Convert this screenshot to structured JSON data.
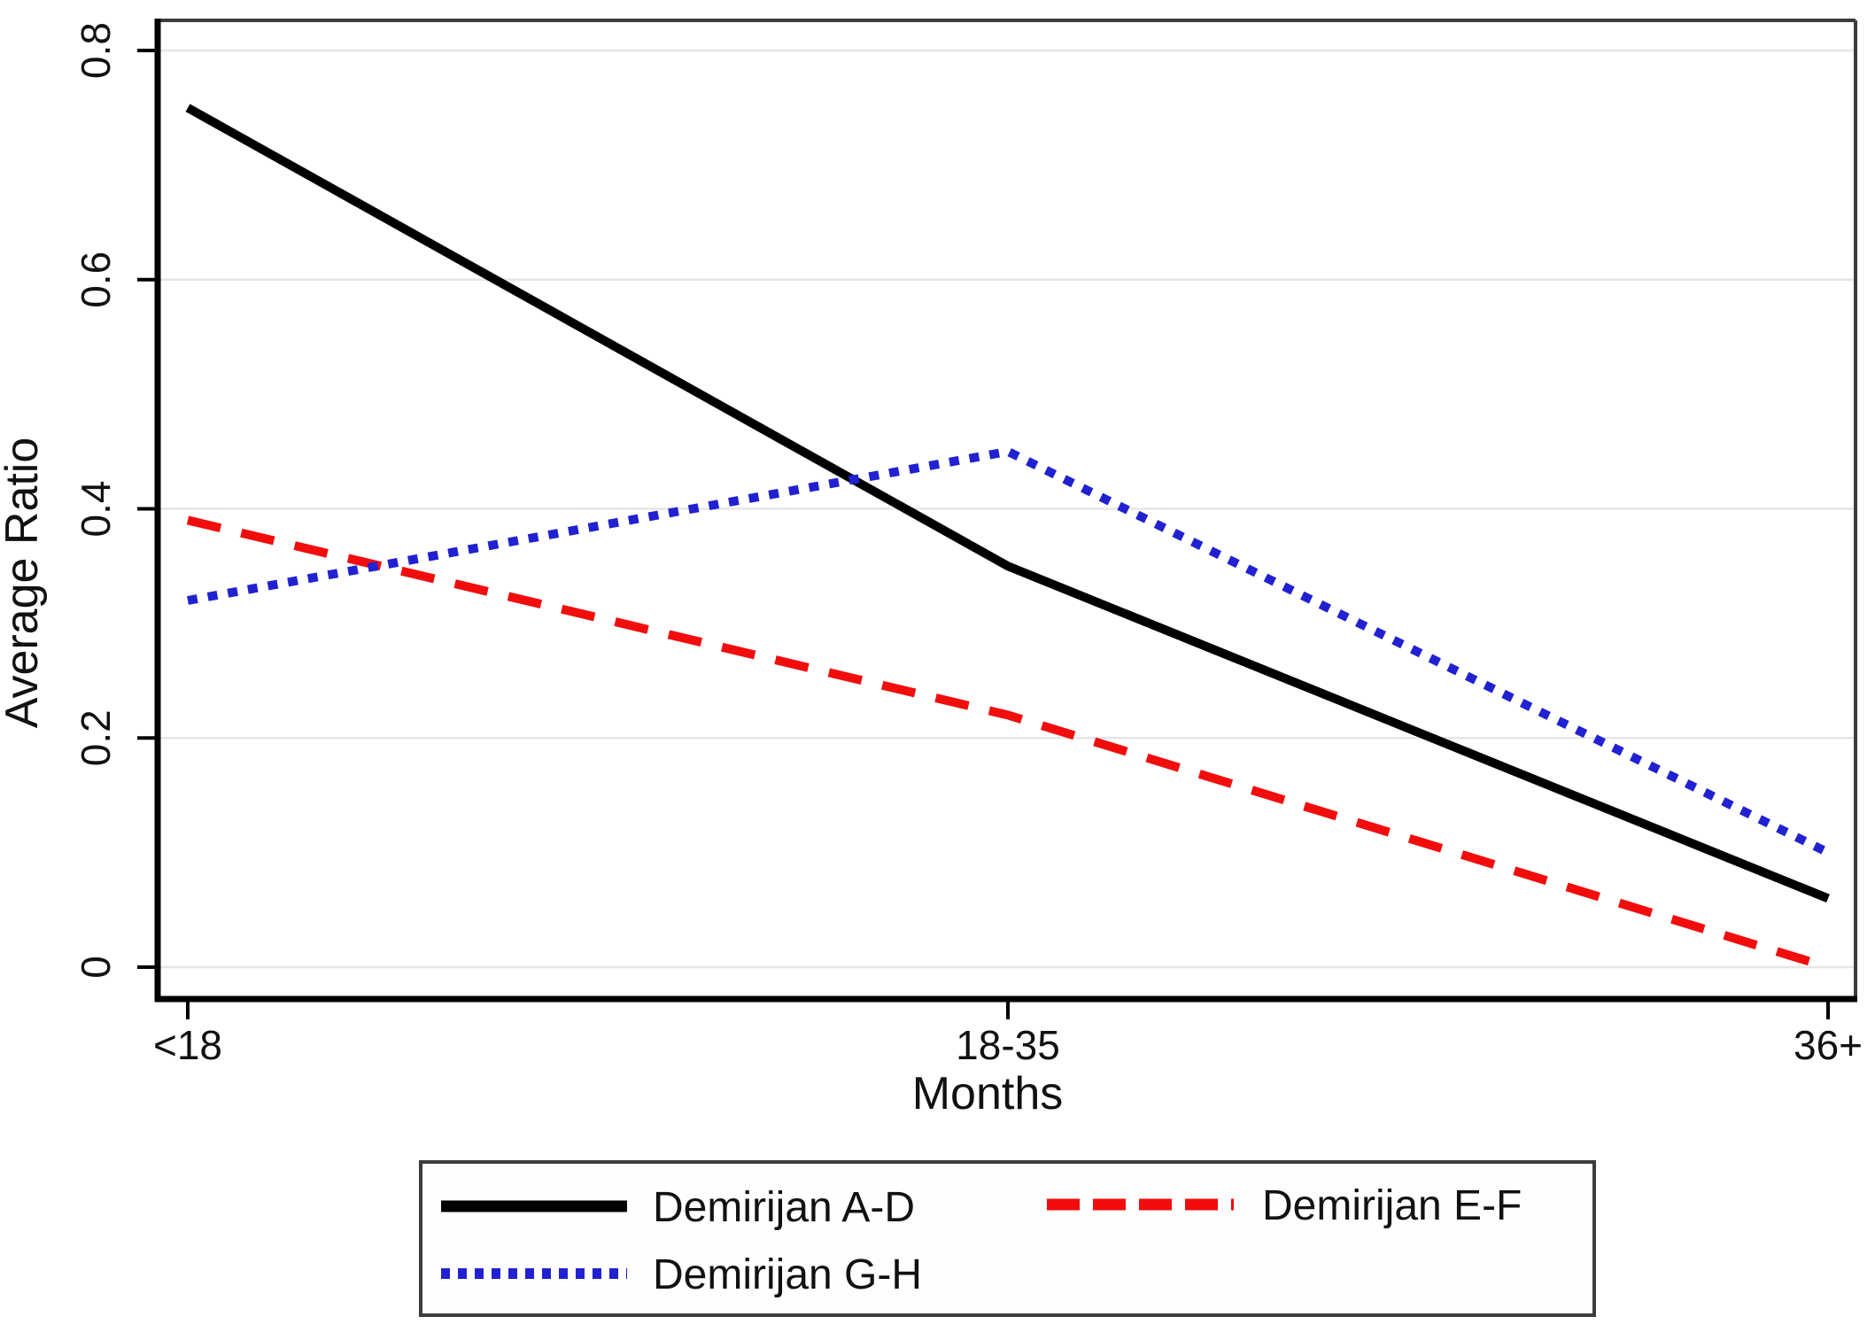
{
  "chart_data": {
    "type": "line",
    "title": "",
    "xlabel": "Months",
    "ylabel": "Average Ratio",
    "categories": [
      "<18",
      "18-35",
      "36+"
    ],
    "y_ticks": [
      "0",
      "0.2",
      "0.4",
      "0.6",
      "0.8"
    ],
    "y_tick_values": [
      0,
      0.2,
      0.4,
      0.6,
      0.8
    ],
    "ylim": [
      0,
      0.8
    ],
    "grid": "horizontal-gridlines",
    "grid_color": "#e6e6e6",
    "frame_color": "#3c3c3c",
    "axis_color": "#000000",
    "legend_position": "bottom",
    "series": [
      {
        "name": "Demirijan A-D",
        "style": "solid",
        "color": "#000000",
        "values": [
          0.75,
          0.35,
          0.06
        ]
      },
      {
        "name": "Demirijan E-F",
        "style": "dashed",
        "color": "#f20d0d",
        "values": [
          0.39,
          0.22,
          0.0
        ]
      },
      {
        "name": "Demirijan G-H",
        "style": "dotted",
        "color": "#2121d1",
        "values": [
          0.32,
          0.45,
          0.1
        ]
      }
    ]
  }
}
